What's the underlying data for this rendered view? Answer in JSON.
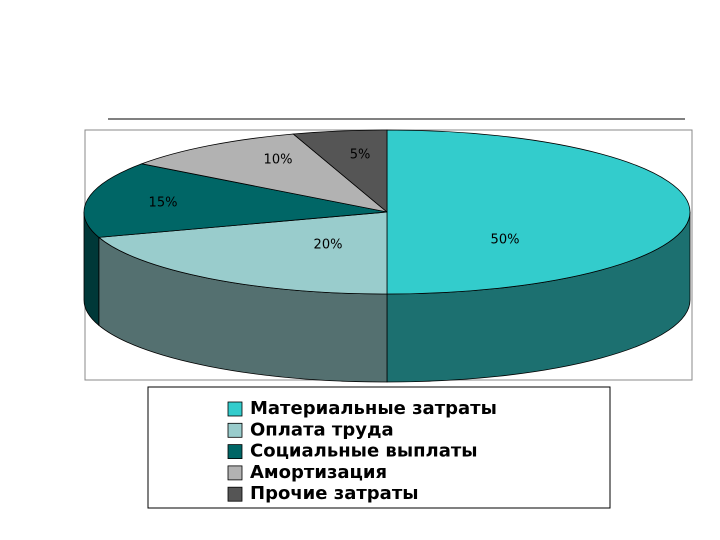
{
  "chart_data": {
    "type": "pie",
    "categories": [
      "Материальные затраты",
      "Оплата труда",
      "Социальные выплаты",
      "Амортизация",
      "Прочие затраты"
    ],
    "values": [
      50,
      20,
      15,
      10,
      5
    ],
    "value_labels": [
      "50%",
      "20%",
      "15%",
      "10%",
      "5%"
    ],
    "colors": [
      "#33cccc",
      "#99cccc",
      "#006666",
      "#b2b2b2",
      "#555555"
    ],
    "legend": "bottom"
  }
}
